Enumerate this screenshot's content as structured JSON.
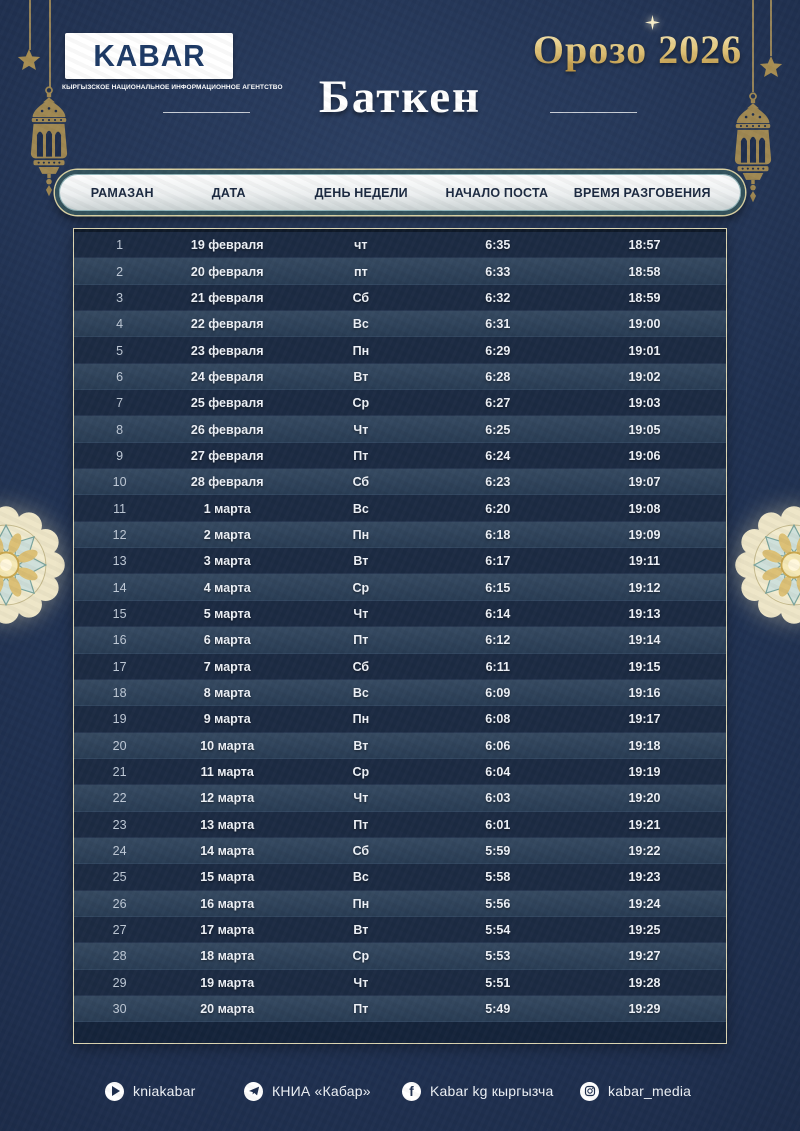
{
  "brand": {
    "logo": "KABAR",
    "logo_subtitle": "КЫРГЫЗСКОЕ НАЦИОНАЛЬНОЕ ИНФОРМАЦИОННОЕ АГЕНТСТВО"
  },
  "header": {
    "event_title": "Орозо 2026",
    "city": "Баткен"
  },
  "table": {
    "columns": [
      "РАМАЗАН",
      "ДАТА",
      "ДЕНЬ НЕДЕЛИ",
      "НАЧАЛО ПОСТА",
      "ВРЕМЯ РАЗГОВЕНИЯ"
    ],
    "rows": [
      [
        "1",
        "19 февраля",
        "чт",
        "6:35",
        "18:57"
      ],
      [
        "2",
        "20 февраля",
        "пт",
        "6:33",
        "18:58"
      ],
      [
        "3",
        "21 февраля",
        "Сб",
        "6:32",
        "18:59"
      ],
      [
        "4",
        "22 февраля",
        "Вс",
        "6:31",
        "19:00"
      ],
      [
        "5",
        "23 февраля",
        "Пн",
        "6:29",
        "19:01"
      ],
      [
        "6",
        "24 февраля",
        "Вт",
        "6:28",
        "19:02"
      ],
      [
        "7",
        "25 февраля",
        "Ср",
        "6:27",
        "19:03"
      ],
      [
        "8",
        "26 февраля",
        "Чт",
        "6:25",
        "19:05"
      ],
      [
        "9",
        "27 февраля",
        "Пт",
        "6:24",
        "19:06"
      ],
      [
        "10",
        "28 февраля",
        "Сб",
        "6:23",
        "19:07"
      ],
      [
        "11",
        "1 марта",
        "Вс",
        "6:20",
        "19:08"
      ],
      [
        "12",
        "2 марта",
        "Пн",
        "6:18",
        "19:09"
      ],
      [
        "13",
        "3 марта",
        "Вт",
        "6:17",
        "19:11"
      ],
      [
        "14",
        "4 марта",
        "Ср",
        "6:15",
        "19:12"
      ],
      [
        "15",
        "5 марта",
        "Чт",
        "6:14",
        "19:13"
      ],
      [
        "16",
        "6 марта",
        "Пт",
        "6:12",
        "19:14"
      ],
      [
        "17",
        "7 марта",
        "Сб",
        "6:11",
        "19:15"
      ],
      [
        "18",
        "8 марта",
        "Вс",
        "6:09",
        "19:16"
      ],
      [
        "19",
        "9 марта",
        "Пн",
        "6:08",
        "19:17"
      ],
      [
        "20",
        "10 марта",
        "Вт",
        "6:06",
        "19:18"
      ],
      [
        "21",
        "11 марта",
        "Ср",
        "6:04",
        "19:19"
      ],
      [
        "22",
        "12 марта",
        "Чт",
        "6:03",
        "19:20"
      ],
      [
        "23",
        "13 марта",
        "Пт",
        "6:01",
        "19:21"
      ],
      [
        "24",
        "14 марта",
        "Сб",
        "5:59",
        "19:22"
      ],
      [
        "25",
        "15 марта",
        "Вс",
        "5:58",
        "19:23"
      ],
      [
        "26",
        "16 марта",
        "Пн",
        "5:56",
        "19:24"
      ],
      [
        "27",
        "17 марта",
        "Вт",
        "5:54",
        "19:25"
      ],
      [
        "28",
        "18 марта",
        "Ср",
        "5:53",
        "19:27"
      ],
      [
        "29",
        "19 марта",
        "Чт",
        "5:51",
        "19:28"
      ],
      [
        "30",
        "20 марта",
        "Пт",
        "5:49",
        "19:29"
      ]
    ]
  },
  "footer": {
    "social": [
      {
        "icon": "play-icon",
        "label": "kniakabar"
      },
      {
        "icon": "telegram-icon",
        "label": "КНИА «Кабар»"
      },
      {
        "icon": "facebook-icon",
        "label": "Kabar kg кыргызча"
      },
      {
        "icon": "instagram-icon",
        "label": "kabar_media"
      }
    ]
  },
  "colors": {
    "background": "#1E2E4D",
    "row_dark": "#1C2B43",
    "row_light": "#2B4059",
    "gold": "#C8A857",
    "pill_border_teal": "#33525C",
    "pill_fill": "#E9EDED",
    "table_border": "#DCD5B2",
    "text_light": "#EEF2F8"
  }
}
